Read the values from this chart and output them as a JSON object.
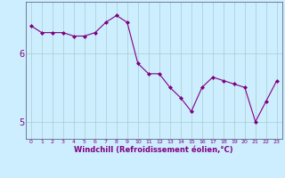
{
  "x": [
    0,
    1,
    2,
    3,
    4,
    5,
    6,
    7,
    8,
    9,
    10,
    11,
    12,
    13,
    14,
    15,
    16,
    17,
    18,
    19,
    20,
    21,
    22,
    23
  ],
  "y": [
    6.4,
    6.3,
    6.3,
    6.3,
    6.25,
    6.25,
    6.3,
    6.45,
    6.55,
    6.45,
    5.85,
    5.7,
    5.7,
    5.5,
    5.35,
    5.15,
    5.5,
    5.65,
    5.6,
    5.55,
    5.5,
    5.0,
    5.3,
    5.6
  ],
  "line_color": "#800080",
  "marker": "D",
  "marker_size": 2,
  "bg_color": "#cceeff",
  "grid_color": "#aacccc",
  "xlabel": "Windchill (Refroidissement éolien,°C)",
  "xlabel_color": "#800080",
  "tick_color": "#800080",
  "yticks": [
    5,
    6
  ],
  "ylim": [
    4.75,
    6.75
  ],
  "xlim": [
    -0.5,
    23.5
  ],
  "xtick_labels": [
    "0",
    "1",
    "2",
    "3",
    "4",
    "5",
    "6",
    "7",
    "8",
    "9",
    "10",
    "11",
    "12",
    "13",
    "14",
    "15",
    "16",
    "17",
    "18",
    "19",
    "20",
    "21",
    "22",
    "23"
  ]
}
